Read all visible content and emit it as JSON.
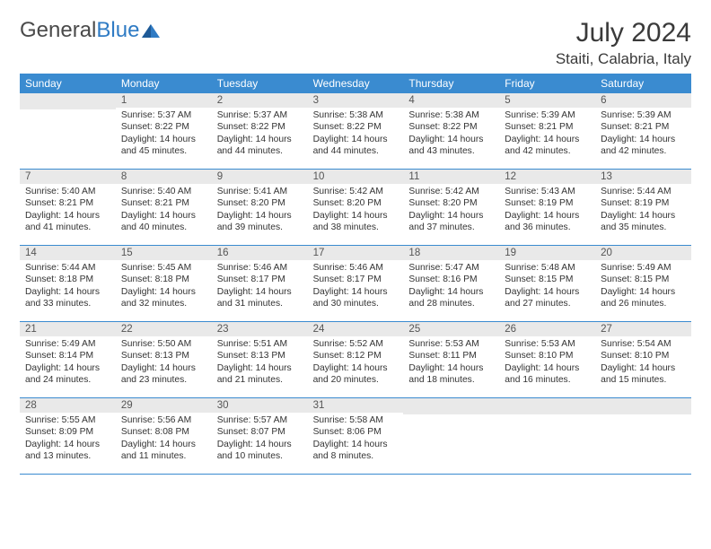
{
  "brand": {
    "name_part1": "General",
    "name_part2": "Blue",
    "icon_color": "#2f7bc4"
  },
  "title": "July 2024",
  "location": "Staiti, Calabria, Italy",
  "colors": {
    "header_bg": "#3a8bd0",
    "header_text": "#ffffff",
    "daynum_bg": "#e9e9e9",
    "border": "#3a8bd0",
    "text": "#333333",
    "background": "#ffffff"
  },
  "days_of_week": [
    "Sunday",
    "Monday",
    "Tuesday",
    "Wednesday",
    "Thursday",
    "Friday",
    "Saturday"
  ],
  "weeks": [
    [
      {
        "n": "",
        "empty": true
      },
      {
        "n": "1",
        "sr": "Sunrise: 5:37 AM",
        "ss": "Sunset: 8:22 PM",
        "d1": "Daylight: 14 hours",
        "d2": "and 45 minutes."
      },
      {
        "n": "2",
        "sr": "Sunrise: 5:37 AM",
        "ss": "Sunset: 8:22 PM",
        "d1": "Daylight: 14 hours",
        "d2": "and 44 minutes."
      },
      {
        "n": "3",
        "sr": "Sunrise: 5:38 AM",
        "ss": "Sunset: 8:22 PM",
        "d1": "Daylight: 14 hours",
        "d2": "and 44 minutes."
      },
      {
        "n": "4",
        "sr": "Sunrise: 5:38 AM",
        "ss": "Sunset: 8:22 PM",
        "d1": "Daylight: 14 hours",
        "d2": "and 43 minutes."
      },
      {
        "n": "5",
        "sr": "Sunrise: 5:39 AM",
        "ss": "Sunset: 8:21 PM",
        "d1": "Daylight: 14 hours",
        "d2": "and 42 minutes."
      },
      {
        "n": "6",
        "sr": "Sunrise: 5:39 AM",
        "ss": "Sunset: 8:21 PM",
        "d1": "Daylight: 14 hours",
        "d2": "and 42 minutes."
      }
    ],
    [
      {
        "n": "7",
        "sr": "Sunrise: 5:40 AM",
        "ss": "Sunset: 8:21 PM",
        "d1": "Daylight: 14 hours",
        "d2": "and 41 minutes."
      },
      {
        "n": "8",
        "sr": "Sunrise: 5:40 AM",
        "ss": "Sunset: 8:21 PM",
        "d1": "Daylight: 14 hours",
        "d2": "and 40 minutes."
      },
      {
        "n": "9",
        "sr": "Sunrise: 5:41 AM",
        "ss": "Sunset: 8:20 PM",
        "d1": "Daylight: 14 hours",
        "d2": "and 39 minutes."
      },
      {
        "n": "10",
        "sr": "Sunrise: 5:42 AM",
        "ss": "Sunset: 8:20 PM",
        "d1": "Daylight: 14 hours",
        "d2": "and 38 minutes."
      },
      {
        "n": "11",
        "sr": "Sunrise: 5:42 AM",
        "ss": "Sunset: 8:20 PM",
        "d1": "Daylight: 14 hours",
        "d2": "and 37 minutes."
      },
      {
        "n": "12",
        "sr": "Sunrise: 5:43 AM",
        "ss": "Sunset: 8:19 PM",
        "d1": "Daylight: 14 hours",
        "d2": "and 36 minutes."
      },
      {
        "n": "13",
        "sr": "Sunrise: 5:44 AM",
        "ss": "Sunset: 8:19 PM",
        "d1": "Daylight: 14 hours",
        "d2": "and 35 minutes."
      }
    ],
    [
      {
        "n": "14",
        "sr": "Sunrise: 5:44 AM",
        "ss": "Sunset: 8:18 PM",
        "d1": "Daylight: 14 hours",
        "d2": "and 33 minutes."
      },
      {
        "n": "15",
        "sr": "Sunrise: 5:45 AM",
        "ss": "Sunset: 8:18 PM",
        "d1": "Daylight: 14 hours",
        "d2": "and 32 minutes."
      },
      {
        "n": "16",
        "sr": "Sunrise: 5:46 AM",
        "ss": "Sunset: 8:17 PM",
        "d1": "Daylight: 14 hours",
        "d2": "and 31 minutes."
      },
      {
        "n": "17",
        "sr": "Sunrise: 5:46 AM",
        "ss": "Sunset: 8:17 PM",
        "d1": "Daylight: 14 hours",
        "d2": "and 30 minutes."
      },
      {
        "n": "18",
        "sr": "Sunrise: 5:47 AM",
        "ss": "Sunset: 8:16 PM",
        "d1": "Daylight: 14 hours",
        "d2": "and 28 minutes."
      },
      {
        "n": "19",
        "sr": "Sunrise: 5:48 AM",
        "ss": "Sunset: 8:15 PM",
        "d1": "Daylight: 14 hours",
        "d2": "and 27 minutes."
      },
      {
        "n": "20",
        "sr": "Sunrise: 5:49 AM",
        "ss": "Sunset: 8:15 PM",
        "d1": "Daylight: 14 hours",
        "d2": "and 26 minutes."
      }
    ],
    [
      {
        "n": "21",
        "sr": "Sunrise: 5:49 AM",
        "ss": "Sunset: 8:14 PM",
        "d1": "Daylight: 14 hours",
        "d2": "and 24 minutes."
      },
      {
        "n": "22",
        "sr": "Sunrise: 5:50 AM",
        "ss": "Sunset: 8:13 PM",
        "d1": "Daylight: 14 hours",
        "d2": "and 23 minutes."
      },
      {
        "n": "23",
        "sr": "Sunrise: 5:51 AM",
        "ss": "Sunset: 8:13 PM",
        "d1": "Daylight: 14 hours",
        "d2": "and 21 minutes."
      },
      {
        "n": "24",
        "sr": "Sunrise: 5:52 AM",
        "ss": "Sunset: 8:12 PM",
        "d1": "Daylight: 14 hours",
        "d2": "and 20 minutes."
      },
      {
        "n": "25",
        "sr": "Sunrise: 5:53 AM",
        "ss": "Sunset: 8:11 PM",
        "d1": "Daylight: 14 hours",
        "d2": "and 18 minutes."
      },
      {
        "n": "26",
        "sr": "Sunrise: 5:53 AM",
        "ss": "Sunset: 8:10 PM",
        "d1": "Daylight: 14 hours",
        "d2": "and 16 minutes."
      },
      {
        "n": "27",
        "sr": "Sunrise: 5:54 AM",
        "ss": "Sunset: 8:10 PM",
        "d1": "Daylight: 14 hours",
        "d2": "and 15 minutes."
      }
    ],
    [
      {
        "n": "28",
        "sr": "Sunrise: 5:55 AM",
        "ss": "Sunset: 8:09 PM",
        "d1": "Daylight: 14 hours",
        "d2": "and 13 minutes."
      },
      {
        "n": "29",
        "sr": "Sunrise: 5:56 AM",
        "ss": "Sunset: 8:08 PM",
        "d1": "Daylight: 14 hours",
        "d2": "and 11 minutes."
      },
      {
        "n": "30",
        "sr": "Sunrise: 5:57 AM",
        "ss": "Sunset: 8:07 PM",
        "d1": "Daylight: 14 hours",
        "d2": "and 10 minutes."
      },
      {
        "n": "31",
        "sr": "Sunrise: 5:58 AM",
        "ss": "Sunset: 8:06 PM",
        "d1": "Daylight: 14 hours",
        "d2": "and 8 minutes."
      },
      {
        "n": "",
        "empty": true
      },
      {
        "n": "",
        "empty": true
      },
      {
        "n": "",
        "empty": true
      }
    ]
  ]
}
